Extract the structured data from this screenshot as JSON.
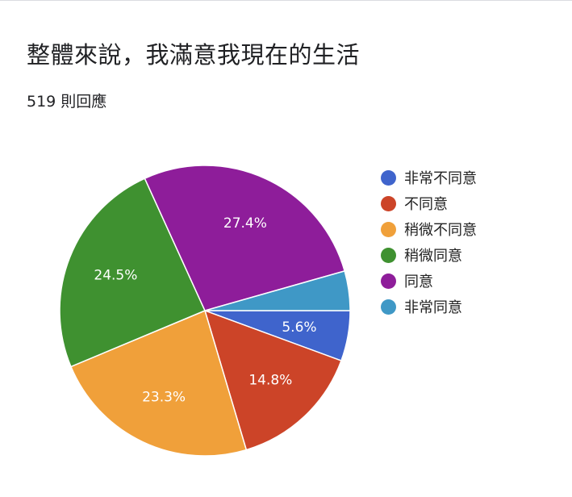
{
  "header": {
    "title": "整體來說，我滿意我現在的生活",
    "response_count": "519 則回應"
  },
  "chart_data": {
    "type": "pie",
    "title": "整體來說，我滿意我現在的生活",
    "legend_position": "right",
    "slices": [
      {
        "label": "非常不同意",
        "value": 5.6,
        "display": "5.6%",
        "color": "#3f64cc"
      },
      {
        "label": "不同意",
        "value": 14.8,
        "display": "14.8%",
        "color": "#cc4428"
      },
      {
        "label": "稍微不同意",
        "value": 23.3,
        "display": "23.3%",
        "color": "#f0a03a"
      },
      {
        "label": "稍微同意",
        "value": 24.5,
        "display": "24.5%",
        "color": "#3f9130"
      },
      {
        "label": "同意",
        "value": 27.4,
        "display": "27.4%",
        "color": "#8e1d9a"
      },
      {
        "label": "非常同意",
        "value": 4.4,
        "display": "",
        "color": "#3f98c6"
      }
    ]
  }
}
